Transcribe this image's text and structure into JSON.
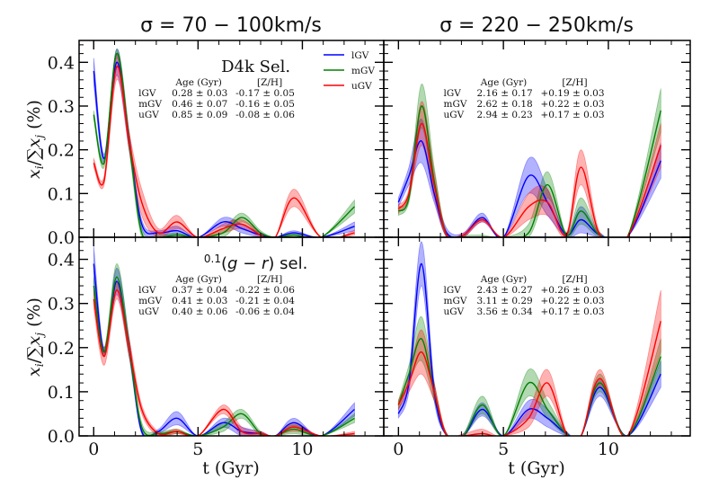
{
  "chart_data": {
    "type": "line",
    "layout": "2x2 grid, shared axes",
    "column_titles": [
      "σ = 70 − 100km/s",
      "σ = 220 − 250km/s"
    ],
    "xlabel": "t (Gyr)",
    "ylabel": "x_j/∑x_j (%)",
    "xlim": [
      -0.7,
      13.9
    ],
    "ylim": [
      0.0,
      0.45
    ],
    "xticks": [
      "0",
      "5",
      "10"
    ],
    "xtick_values": [
      0,
      5,
      10
    ],
    "yticks": [
      "0.0",
      "0.1",
      "0.2",
      "0.3",
      "0.4"
    ],
    "ytick_values": [
      0.0,
      0.1,
      0.2,
      0.3,
      0.4
    ],
    "legend": {
      "placement": "top-right of top-left panel",
      "entries": [
        {
          "name": "lGV",
          "color": "#0000ff"
        },
        {
          "name": "mGV",
          "color": "#008000"
        },
        {
          "name": "uGV",
          "color": "#ff0000"
        }
      ]
    },
    "x": [
      0,
      0.5,
      1.1,
      1.7,
      2.3,
      3.1,
      4.0,
      5.0,
      6.2,
      7.1,
      8.0,
      8.7,
      9.6,
      10.9,
      12.5
    ],
    "panels": [
      {
        "row": 0,
        "col": 0,
        "selection_label": "D4k Sel.",
        "table": {
          "header": [
            "",
            "Age (Gyr)",
            "[Z/H]"
          ],
          "rows": [
            [
              "lGV",
              "0.28 ± 0.03",
              "-0.17 ± 0.05"
            ],
            [
              "mGV",
              "0.46 ± 0.07",
              "-0.16 ± 0.05"
            ],
            [
              "uGV",
              "0.85 ± 0.09",
              "-0.08 ± 0.06"
            ]
          ]
        },
        "series": [
          {
            "name": "lGV",
            "values": [
              0.38,
              0.18,
              0.4,
              0.22,
              0.03,
              0.01,
              0.015,
              0.0,
              0.035,
              0.02,
              0.005,
              0.0,
              0.01,
              0.0,
              0.025
            ],
            "err": [
              0.03,
              0.01,
              0.03,
              0.02,
              0.01,
              0.005,
              0.01,
              0.0,
              0.01,
              0.01,
              0.005,
              0.0,
              0.005,
              0.0,
              0.01
            ]
          },
          {
            "name": "mGV",
            "values": [
              0.28,
              0.17,
              0.42,
              0.22,
              0.01,
              0.0,
              0.005,
              0.0,
              0.01,
              0.045,
              0.01,
              0.0,
              0.005,
              0.0,
              0.07
            ],
            "err": [
              0.01,
              0.01,
              0.01,
              0.02,
              0.01,
              0.005,
              0.005,
              0.0,
              0.01,
              0.01,
              0.005,
              0.0,
              0.005,
              0.0,
              0.015
            ]
          },
          {
            "name": "uGV",
            "values": [
              0.17,
              0.13,
              0.39,
              0.22,
              0.08,
              0.01,
              0.035,
              0.0,
              0.02,
              0.03,
              0.005,
              0.0,
              0.09,
              0.0,
              0.01
            ],
            "err": [
              0.01,
              0.01,
              0.03,
              0.02,
              0.03,
              0.01,
              0.015,
              0.0,
              0.01,
              0.01,
              0.005,
              0.0,
              0.02,
              0.0,
              0.005
            ]
          }
        ]
      },
      {
        "row": 0,
        "col": 1,
        "selection_label": "",
        "table": {
          "header": [
            "",
            "Age (Gyr)",
            "[Z/H]"
          ],
          "rows": [
            [
              "lGV",
              "2.16 ± 0.17",
              "+0.19 ± 0.03"
            ],
            [
              "mGV",
              "2.62 ± 0.18",
              "+0.22 ± 0.03"
            ],
            [
              "uGV",
              "2.94 ± 0.23",
              "+0.17 ± 0.03"
            ]
          ]
        },
        "series": [
          {
            "name": "lGV",
            "values": [
              0.08,
              0.14,
              0.22,
              0.1,
              0.01,
              0.005,
              0.045,
              0.0,
              0.14,
              0.08,
              0.005,
              0.04,
              0.005,
              0.0,
              0.175
            ],
            "err": [
              0.01,
              0.02,
              0.05,
              0.02,
              0.01,
              0.005,
              0.01,
              0.0,
              0.04,
              0.03,
              0.005,
              0.03,
              0.005,
              0.0,
              0.04
            ]
          },
          {
            "name": "mGV",
            "values": [
              0.06,
              0.09,
              0.3,
              0.13,
              0.005,
              0.0,
              0.0,
              0.0,
              0.01,
              0.12,
              0.005,
              0.06,
              0.005,
              0.0,
              0.29
            ],
            "err": [
              0.01,
              0.01,
              0.05,
              0.03,
              0.005,
              0.005,
              0.005,
              0.0,
              0.02,
              0.03,
              0.005,
              0.03,
              0.005,
              0.0,
              0.05
            ]
          },
          {
            "name": "uGV",
            "values": [
              0.065,
              0.1,
              0.26,
              0.12,
              0.005,
              0.005,
              0.04,
              0.0,
              0.07,
              0.08,
              0.005,
              0.16,
              0.005,
              0.0,
              0.21
            ],
            "err": [
              0.01,
              0.01,
              0.05,
              0.03,
              0.005,
              0.005,
              0.005,
              0.0,
              0.03,
              0.03,
              0.005,
              0.04,
              0.005,
              0.0,
              0.05
            ]
          }
        ]
      },
      {
        "row": 1,
        "col": 0,
        "selection_label": "0.1(g − r) sel.",
        "table": {
          "header": [
            "",
            "Age (Gyr)",
            "[Z/H]"
          ],
          "rows": [
            [
              "lGV",
              "0.37 ± 0.04",
              "-0.22 ± 0.06"
            ],
            [
              "mGV",
              "0.41 ± 0.03",
              "-0.21 ± 0.04"
            ],
            [
              "uGV",
              "0.40 ± 0.06",
              "-0.06 ± 0.04"
            ]
          ]
        },
        "series": [
          {
            "name": "lGV",
            "values": [
              0.39,
              0.19,
              0.35,
              0.2,
              0.01,
              0.01,
              0.04,
              0.0,
              0.03,
              0.01,
              0.005,
              0.0,
              0.03,
              0.0,
              0.06
            ],
            "err": [
              0.04,
              0.01,
              0.03,
              0.02,
              0.005,
              0.005,
              0.015,
              0.0,
              0.01,
              0.01,
              0.005,
              0.0,
              0.01,
              0.0,
              0.015
            ]
          },
          {
            "name": "mGV",
            "values": [
              0.34,
              0.19,
              0.36,
              0.2,
              0.02,
              0.005,
              0.01,
              0.0,
              0.02,
              0.05,
              0.005,
              0.0,
              0.015,
              0.0,
              0.04
            ],
            "err": [
              0.02,
              0.01,
              0.03,
              0.02,
              0.01,
              0.005,
              0.005,
              0.0,
              0.01,
              0.01,
              0.005,
              0.0,
              0.01,
              0.0,
              0.01
            ]
          },
          {
            "name": "uGV",
            "values": [
              0.31,
              0.18,
              0.33,
              0.2,
              0.06,
              0.005,
              0.01,
              0.0,
              0.06,
              0.01,
              0.005,
              0.0,
              0.02,
              0.0,
              0.005
            ],
            "err": [
              0.02,
              0.02,
              0.02,
              0.02,
              0.01,
              0.005,
              0.005,
              0.0,
              0.01,
              0.01,
              0.005,
              0.0,
              0.01,
              0.0,
              0.005
            ]
          }
        ]
      },
      {
        "row": 1,
        "col": 1,
        "selection_label": "",
        "table": {
          "header": [
            "",
            "Age (Gyr)",
            "[Z/H]"
          ],
          "rows": [
            [
              "lGV",
              "2.43 ± 0.27",
              "+0.26 ± 0.03"
            ],
            [
              "mGV",
              "3.11 ± 0.29",
              "+0.22 ± 0.03"
            ],
            [
              "uGV",
              "3.56 ± 0.34",
              "+0.17 ± 0.03"
            ]
          ]
        },
        "series": [
          {
            "name": "lGV",
            "values": [
              0.05,
              0.12,
              0.39,
              0.1,
              0.0,
              0.0,
              0.06,
              0.0,
              0.06,
              0.04,
              0.005,
              0.0,
              0.11,
              0.0,
              0.14
            ],
            "err": [
              0.01,
              0.02,
              0.05,
              0.02,
              0.005,
              0.005,
              0.015,
              0.0,
              0.02,
              0.02,
              0.005,
              0.0,
              0.02,
              0.0,
              0.03
            ]
          },
          {
            "name": "mGV",
            "values": [
              0.07,
              0.14,
              0.22,
              0.1,
              0.0,
              0.0,
              0.07,
              0.0,
              0.12,
              0.06,
              0.005,
              0.0,
              0.12,
              0.0,
              0.18
            ],
            "err": [
              0.01,
              0.02,
              0.05,
              0.02,
              0.005,
              0.005,
              0.02,
              0.0,
              0.03,
              0.02,
              0.005,
              0.0,
              0.02,
              0.0,
              0.04
            ]
          },
          {
            "name": "uGV",
            "values": [
              0.07,
              0.12,
              0.19,
              0.1,
              0.0,
              0.0,
              0.005,
              0.0,
              0.04,
              0.12,
              0.005,
              0.0,
              0.13,
              0.0,
              0.26
            ],
            "err": [
              0.01,
              0.02,
              0.05,
              0.02,
              0.005,
              0.005,
              0.01,
              0.0,
              0.02,
              0.03,
              0.005,
              0.0,
              0.02,
              0.0,
              0.07
            ]
          }
        ]
      }
    ]
  }
}
